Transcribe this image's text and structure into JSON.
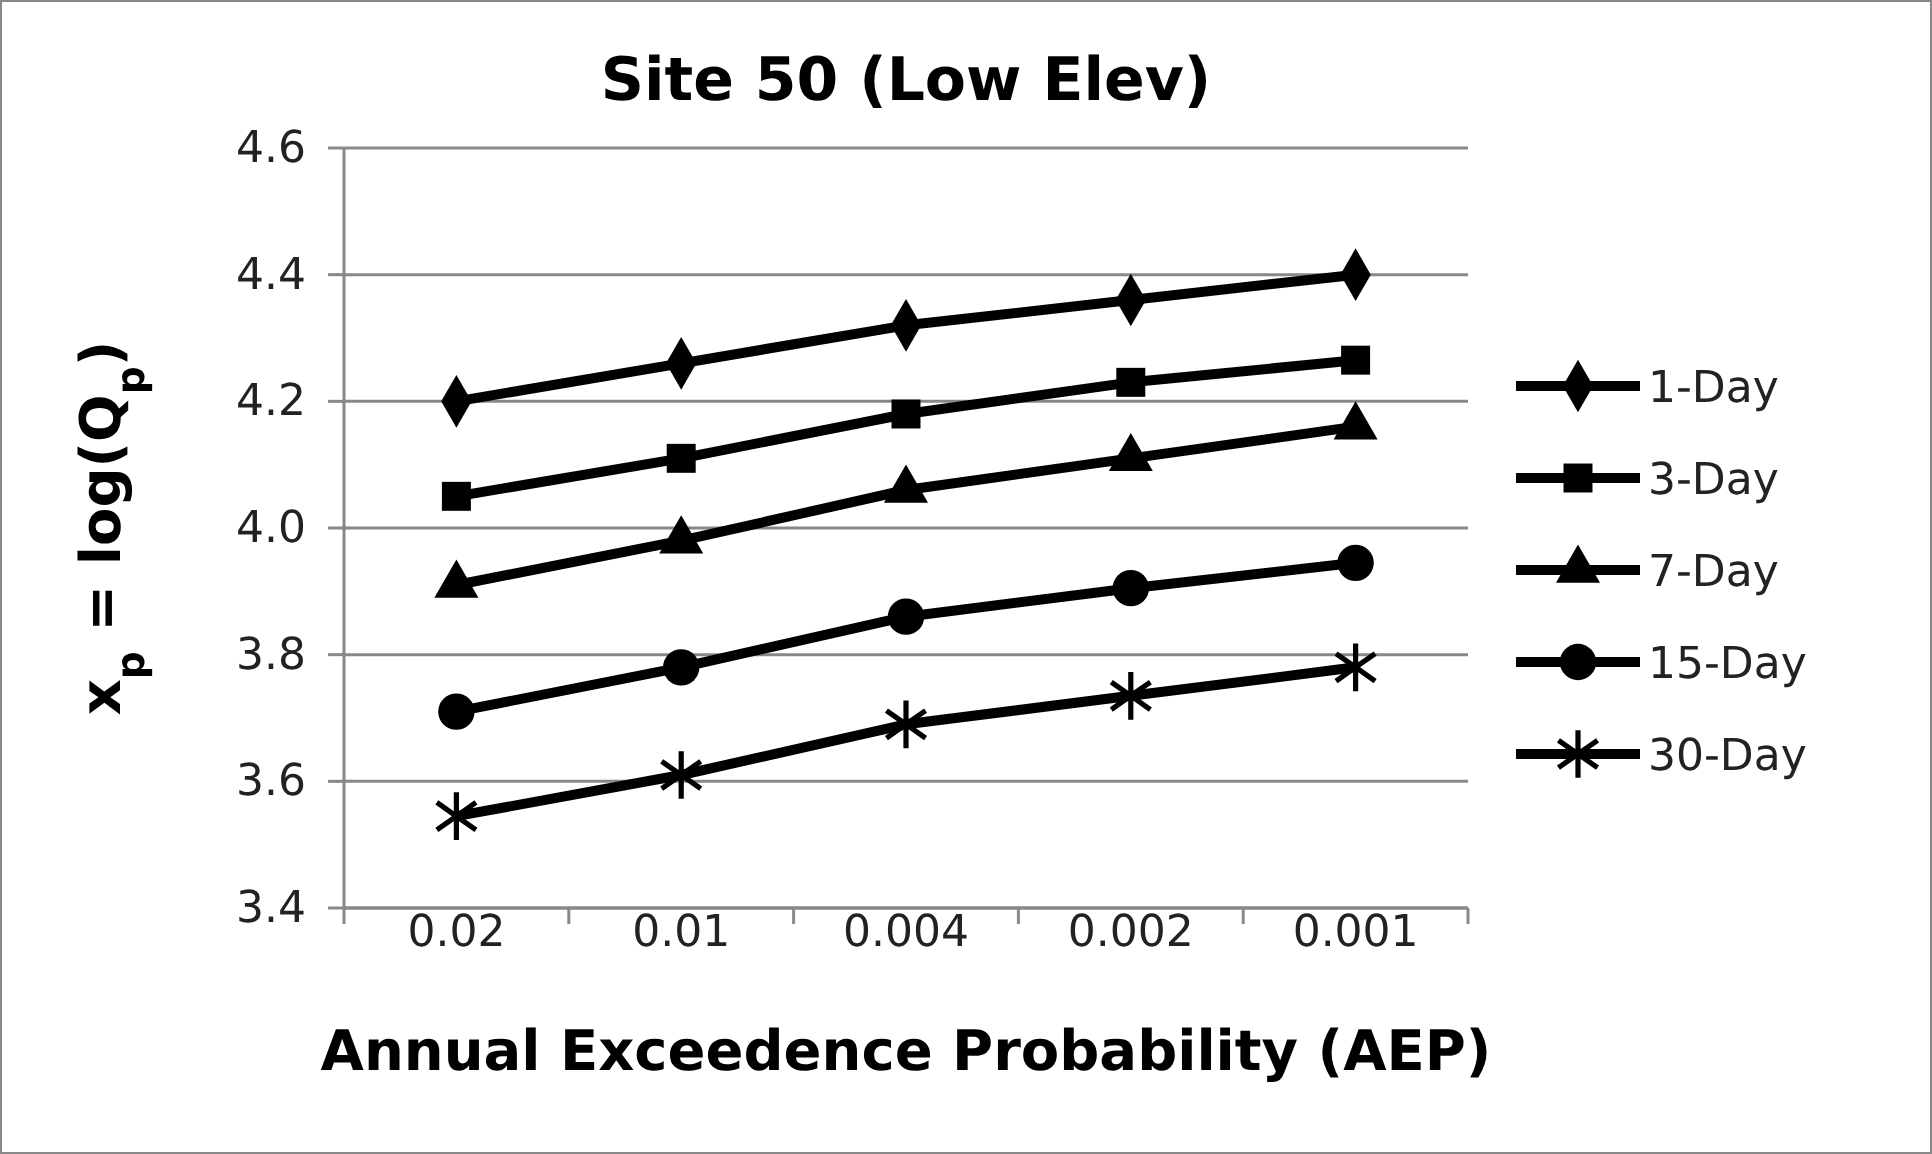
{
  "chart_data": {
    "type": "line",
    "title": "Site 50 (Low Elev)",
    "xlabel": "Annual Exceedence Probability  (AEP)",
    "ylabel": "x$_{p}$ = log(Q$_{p}$)",
    "categories": [
      "0.02",
      "0.01",
      "0.004",
      "0.002",
      "0.001"
    ],
    "ylim": [
      3.4,
      4.6
    ],
    "yticks": [
      3.4,
      3.6,
      3.8,
      {
        "value": 4.0,
        "label": "4.0"
      },
      4.2,
      4.4,
      4.6
    ],
    "grid": "y",
    "legend": "right",
    "line_style": "solid",
    "series": [
      {
        "name": "1-Day",
        "color": "#000000",
        "marker": "diamond",
        "values": [
          4.2,
          4.26,
          4.32,
          4.36,
          4.4
        ]
      },
      {
        "name": "3-Day",
        "color": "#000000",
        "marker": "square",
        "values": [
          4.05,
          4.11,
          4.18,
          4.23,
          4.265
        ]
      },
      {
        "name": "7-Day",
        "color": "#000000",
        "marker": "triangle",
        "values": [
          3.91,
          3.98,
          4.06,
          4.11,
          4.16
        ]
      },
      {
        "name": "15-Day",
        "color": "#000000",
        "marker": "circle",
        "values": [
          3.71,
          3.78,
          3.86,
          3.905,
          3.945
        ]
      },
      {
        "name": "30-Day",
        "color": "#000000",
        "marker": "star",
        "values": [
          3.545,
          3.61,
          3.69,
          3.735,
          3.78
        ]
      }
    ]
  }
}
